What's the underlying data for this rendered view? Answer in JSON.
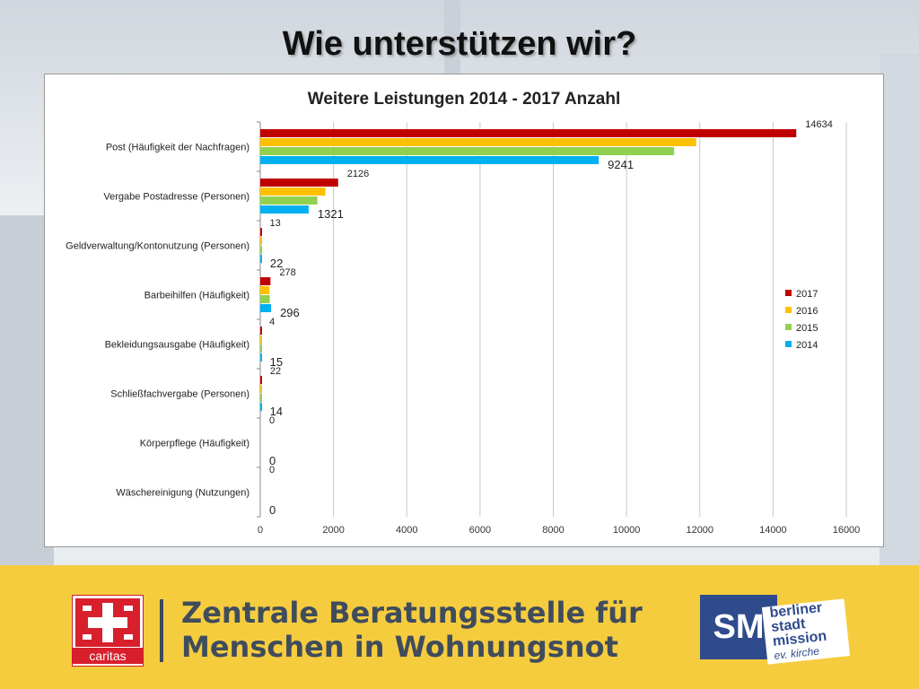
{
  "slide": {
    "title": "Wie unterstützen wir?"
  },
  "chart_data": {
    "type": "bar",
    "orientation": "horizontal",
    "title": "Weitere Leistungen 2014 - 2017 Anzahl",
    "xlabel": "",
    "ylabel": "",
    "xlim": [
      0,
      16000
    ],
    "x_ticks": [
      "0",
      "2000",
      "4000",
      "6000",
      "8000",
      "10000",
      "12000",
      "14000",
      "16000"
    ],
    "grid": true,
    "legend_position": "right",
    "categories": [
      "Post (Häufigkeit der Nachfragen)",
      "Vergabe Postadresse (Personen)",
      "Geldverwaltung/Kontonutzung (Personen)",
      "Barbeihilfen (Häufigkeit)",
      "Bekleidungsausgabe (Häufigkeit)",
      "Schließfachvergabe (Personen)",
      "Körperpflege (Häufigkeit)",
      "Wäschereinigung (Nutzungen)"
    ],
    "series": [
      {
        "name": "2017",
        "color": "#c00000",
        "values": [
          14634,
          2126,
          13,
          278,
          4,
          22,
          0,
          0
        ],
        "show_labels": true
      },
      {
        "name": "2016",
        "color": "#ffc000",
        "values": [
          11900,
          1780,
          10,
          250,
          6,
          18,
          0,
          0
        ],
        "show_labels": false
      },
      {
        "name": "2015",
        "color": "#92d050",
        "values": [
          11300,
          1560,
          12,
          260,
          8,
          16,
          0,
          0
        ],
        "show_labels": false
      },
      {
        "name": "2014",
        "color": "#00b0f0",
        "values": [
          9241,
          1321,
          22,
          296,
          15,
          14,
          0,
          0
        ],
        "show_labels": true
      }
    ]
  },
  "footer": {
    "caritas_label": "caritas",
    "line1": "Zentrale Beratungsstelle für",
    "line2": "Menschen in Wohnungsnot",
    "sm_label": "SM",
    "bsm_line1": "berliner",
    "bsm_line2": "stadt",
    "bsm_line3": "mission",
    "bsm_line4": "ev. kirche"
  }
}
